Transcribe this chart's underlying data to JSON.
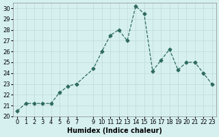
{
  "x": [
    0,
    1,
    2,
    3,
    4,
    5,
    6,
    7,
    9,
    10,
    11,
    12,
    13,
    14,
    15,
    16,
    17,
    18,
    19,
    20,
    21,
    22,
    23
  ],
  "y": [
    20.5,
    21.2,
    21.2,
    21.2,
    21.2,
    22.2,
    22.8,
    23.0,
    24.4,
    26.0,
    27.5,
    28.0,
    27.0,
    30.2,
    29.5,
    24.2,
    25.2,
    26.2,
    24.3,
    25.0,
    25.0,
    24.0,
    23.0
  ],
  "line_color": "#2e6b5e",
  "marker": "D",
  "marker_size": 2.5,
  "line_width": 0.9,
  "bg_color": "#d6f0f0",
  "grid_color": "#c0d8d8",
  "xlabel": "Humidex (Indice chaleur)",
  "ylabel": "",
  "xlim": [
    -0.5,
    23.5
  ],
  "ylim": [
    20,
    30.5
  ],
  "yticks": [
    20,
    21,
    22,
    23,
    24,
    25,
    26,
    27,
    28,
    29,
    30
  ],
  "xticks": [
    0,
    1,
    2,
    3,
    4,
    5,
    6,
    7,
    9,
    10,
    11,
    12,
    13,
    14,
    15,
    16,
    17,
    18,
    19,
    20,
    21,
    22,
    23
  ],
  "title_fontsize": 7,
  "label_fontsize": 7,
  "tick_fontsize": 6
}
